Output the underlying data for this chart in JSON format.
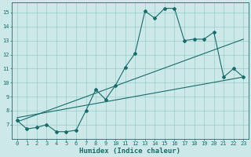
{
  "title": "",
  "xlabel": "Humidex (Indice chaleur)",
  "ylabel": "",
  "xlim": [
    -0.5,
    23.5
  ],
  "ylim": [
    6.0,
    15.7
  ],
  "yticks": [
    7,
    8,
    9,
    10,
    11,
    12,
    13,
    14,
    15
  ],
  "xticks": [
    0,
    1,
    2,
    3,
    4,
    5,
    6,
    7,
    8,
    9,
    10,
    11,
    12,
    13,
    14,
    15,
    16,
    17,
    18,
    19,
    20,
    21,
    22,
    23
  ],
  "bg_color": "#cce8e8",
  "grid_color": "#99cccc",
  "line_color": "#1a6b6b",
  "main_x": [
    0,
    1,
    2,
    3,
    4,
    5,
    6,
    7,
    8,
    9,
    10,
    11,
    12,
    13,
    14,
    15,
    16,
    17,
    18,
    19,
    20,
    21,
    22,
    23
  ],
  "main_y": [
    7.3,
    6.7,
    6.8,
    7.0,
    6.5,
    6.5,
    6.6,
    8.0,
    9.5,
    8.8,
    9.8,
    11.1,
    12.1,
    15.1,
    14.6,
    15.3,
    15.3,
    13.0,
    13.1,
    13.1,
    13.6,
    10.4,
    11.0,
    10.4
  ],
  "line2_x": [
    0,
    23
  ],
  "line2_y": [
    7.2,
    13.1
  ],
  "line3_x": [
    0,
    23
  ],
  "line3_y": [
    7.5,
    10.4
  ],
  "marker_size": 2.0,
  "linewidth": 0.8,
  "tick_fontsize": 5.0,
  "xlabel_fontsize": 6.5
}
